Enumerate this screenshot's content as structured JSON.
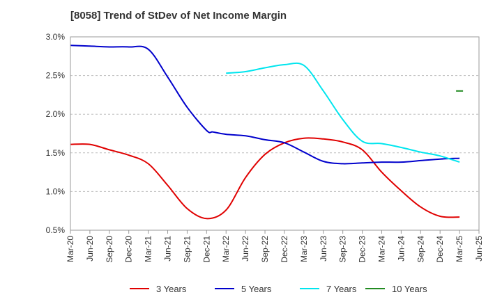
{
  "chart_data": {
    "type": "line",
    "title": "[8058]  Trend of StDev of Net Income Margin",
    "xlabel": "",
    "ylabel": "",
    "ylim": [
      0.5,
      3.0
    ],
    "y_ticks": [
      "0.5%",
      "1.0%",
      "1.5%",
      "2.0%",
      "2.5%",
      "3.0%"
    ],
    "y_tick_values": [
      0.5,
      1.0,
      1.5,
      2.0,
      2.5,
      3.0
    ],
    "x_ticks": [
      "Mar-20",
      "Jun-20",
      "Sep-20",
      "Dec-20",
      "Mar-21",
      "Jun-21",
      "Sep-21",
      "Dec-21",
      "Mar-22",
      "Jun-22",
      "Sep-22",
      "Dec-22",
      "Mar-23",
      "Jun-23",
      "Sep-23",
      "Dec-23",
      "Mar-24",
      "Jun-24",
      "Sep-24",
      "Dec-24",
      "Mar-25",
      "Jun-25"
    ],
    "grid": "horizontal dashed",
    "legend_position": "bottom",
    "series": [
      {
        "name": "3 Years",
        "color": "#e00000",
        "x": [
          "Mar-20",
          "Jun-20",
          "Sep-20",
          "Dec-20",
          "Mar-21",
          "Jun-21",
          "Sep-21",
          "Dec-21",
          "Mar-22",
          "Jun-22",
          "Sep-22",
          "Dec-22",
          "Mar-23",
          "Jun-23",
          "Sep-23",
          "Dec-23",
          "Mar-24",
          "Jun-24",
          "Sep-24",
          "Dec-24",
          "Mar-25"
        ],
        "values": [
          1.61,
          1.61,
          1.54,
          1.47,
          1.36,
          1.08,
          0.78,
          0.65,
          0.76,
          1.18,
          1.48,
          1.63,
          1.69,
          1.68,
          1.64,
          1.54,
          1.25,
          1.01,
          0.8,
          0.68,
          0.67
        ]
      },
      {
        "name": "5 Years",
        "color": "#0000cc",
        "x": [
          "Mar-20",
          "Jun-20",
          "Sep-20",
          "Dec-20",
          "Mar-21",
          "Jun-21",
          "Sep-21",
          "Dec-21",
          "Jan-22",
          "Mar-22",
          "Jun-22",
          "Sep-22",
          "Dec-22",
          "Mar-23",
          "Jun-23",
          "Sep-23",
          "Dec-23",
          "Mar-24",
          "Jun-24",
          "Sep-24",
          "Dec-24",
          "Mar-25"
        ],
        "values": [
          2.89,
          2.88,
          2.87,
          2.87,
          2.84,
          2.48,
          2.09,
          1.79,
          1.77,
          1.74,
          1.72,
          1.67,
          1.63,
          1.51,
          1.39,
          1.36,
          1.37,
          1.38,
          1.38,
          1.4,
          1.42,
          1.43
        ]
      },
      {
        "name": "7 Years",
        "color": "#00e5ee",
        "x": [
          "Mar-22",
          "Jun-22",
          "Sep-22",
          "Dec-22",
          "Mar-23",
          "Jun-23",
          "Sep-23",
          "Dec-23",
          "Mar-24",
          "Jun-24",
          "Sep-24",
          "Dec-24",
          "Mar-25"
        ],
        "values": [
          2.53,
          2.55,
          2.6,
          2.64,
          2.63,
          2.3,
          1.93,
          1.65,
          1.62,
          1.57,
          1.51,
          1.46,
          1.38
        ]
      },
      {
        "name": "10 Years",
        "color": "#228b22",
        "x": [
          "Mar-25"
        ],
        "values": [
          2.3
        ]
      }
    ]
  }
}
